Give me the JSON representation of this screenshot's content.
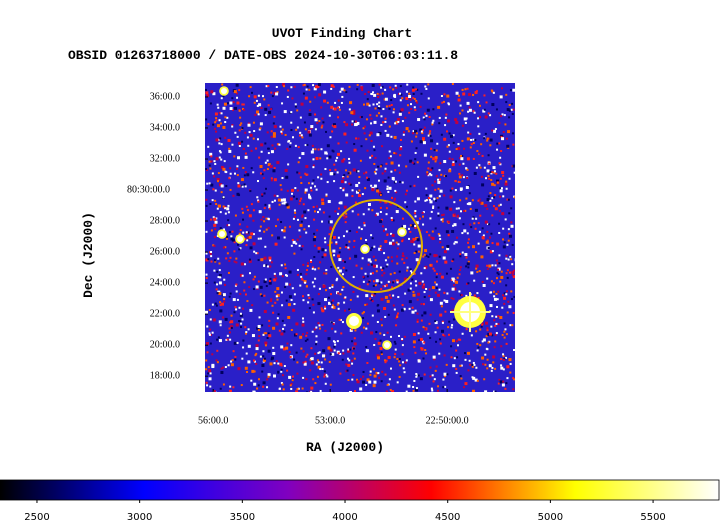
{
  "chart_data": {
    "type": "image",
    "title": "UVOT Finding Chart",
    "subtitle": "OBSID 01263718000 / DATE-OBS 2024-10-30T06:03:11.8",
    "x_label": "RA (J2000)",
    "y_label": "Dec (J2000)",
    "xlim": [
      22.9368,
      22.8043
    ],
    "ylim": [
      80.283,
      80.615
    ],
    "xticks": [
      {
        "value": 22.9333,
        "label": "56:00.0"
      },
      {
        "value": 22.8833,
        "label": "53:00.0"
      },
      {
        "value": 22.8333,
        "label": "22:50:00.0"
      }
    ],
    "yticks": [
      {
        "value": 80.3,
        "label": "18:00.0"
      },
      {
        "value": 80.3333,
        "label": "20:00.0"
      },
      {
        "value": 80.3667,
        "label": "22:00.0"
      },
      {
        "value": 80.4,
        "label": "24:00.0"
      },
      {
        "value": 80.4333,
        "label": "26:00.0"
      },
      {
        "value": 80.4667,
        "label": "28:00.0"
      },
      {
        "value": 80.5,
        "label": "80:30:00.0"
      },
      {
        "value": 80.5333,
        "label": "32:00.0"
      },
      {
        "value": 80.5667,
        "label": "34:00.0"
      },
      {
        "value": 80.6,
        "label": "36:00.0"
      }
    ],
    "colorbar": {
      "lim": [
        2320,
        5821
      ],
      "ticks": [
        2500,
        3000,
        3500,
        4000,
        4500,
        5000,
        5500
      ],
      "colormap": [
        "#000000",
        "#0000ff",
        "#8000c0",
        "#ff0000",
        "#ffff00",
        "#ffffff"
      ]
    },
    "region_color": "#e0b000"
  }
}
